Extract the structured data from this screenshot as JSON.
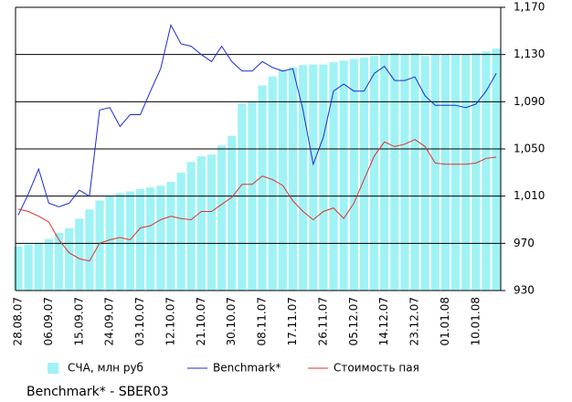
{
  "chart_data": {
    "type": "bar-line",
    "categories": [
      "28.08.07",
      null,
      null,
      "06.09.07",
      null,
      null,
      "15.09.07",
      null,
      null,
      "24.09.07",
      null,
      null,
      "03.10.07",
      null,
      null,
      "12.10.07",
      null,
      null,
      "21.10.07",
      null,
      null,
      "30.10.07",
      null,
      null,
      "08.11.07",
      null,
      null,
      "17.11.07",
      null,
      null,
      "26.11.07",
      null,
      null,
      "05.12.07",
      null,
      null,
      "14.12.07",
      null,
      null,
      "23.12.07",
      null,
      null,
      "01.01.08",
      null,
      null,
      "10.01.08",
      null,
      null
    ],
    "series": [
      {
        "name": "СЧА, млн руб",
        "type": "bar",
        "color": "#9ff3f5",
        "values": [
          0.78,
          0.81,
          0.84,
          0.91,
          1.02,
          1.1,
          1.27,
          1.43,
          1.59,
          1.67,
          1.72,
          1.75,
          1.79,
          1.82,
          1.85,
          1.92,
          2.08,
          2.27,
          2.37,
          2.4,
          2.56,
          2.73,
          3.3,
          3.34,
          3.62,
          3.78,
          3.9,
          3.94,
          3.98,
          3.99,
          3.99,
          4.03,
          4.06,
          4.09,
          4.11,
          4.14,
          4.16,
          4.19,
          4.16,
          4.19,
          4.14,
          4.16,
          4.16,
          4.16,
          4.17,
          4.19,
          4.22,
          4.27
        ]
      },
      {
        "name": "Benchmark*",
        "type": "line",
        "axis": "y2",
        "color": "#1c2bd6",
        "values": [
          994,
          1012,
          1033,
          1004,
          1001,
          1004,
          1015,
          1010,
          1083,
          1085,
          1069,
          1079,
          1079,
          1099,
          1118,
          1155,
          1139,
          1137,
          1130,
          1124,
          1137,
          1124,
          1116,
          1116,
          1124,
          1119,
          1116,
          1118,
          1083,
          1037,
          1060,
          1099,
          1105,
          1099,
          1099,
          1114,
          1120,
          1108,
          1108,
          1111,
          1095,
          1087,
          1087,
          1087,
          1085,
          1088,
          1099,
          1114
        ]
      },
      {
        "name": "Стоимость пая",
        "type": "line",
        "axis": "y2",
        "color": "#e0302a",
        "values": [
          999,
          997,
          993,
          988,
          973,
          962,
          957,
          955,
          970,
          973,
          975,
          973,
          983,
          985,
          990,
          993,
          991,
          990,
          997,
          997,
          1003,
          1009,
          1020,
          1020,
          1027,
          1024,
          1019,
          1006,
          997,
          990,
          997,
          1000,
          991,
          1004,
          1024,
          1044,
          1056,
          1052,
          1054,
          1058,
          1052,
          1038,
          1037,
          1037,
          1037,
          1038,
          1042,
          1043
        ]
      }
    ],
    "ylim": [
      0,
      5
    ],
    "y2lim": [
      930,
      1170
    ],
    "y2ticks": [
      {
        "value": 1170,
        "label": "1,170"
      },
      {
        "value": 1130,
        "label": "1,130"
      },
      {
        "value": 1090,
        "label": "1,090"
      },
      {
        "value": 1050,
        "label": "1,050"
      },
      {
        "value": 1010,
        "label": "1,010"
      },
      970,
      930
    ],
    "grid": true,
    "legend": "bottom",
    "footnote": "Benchmark* - SBER03"
  }
}
